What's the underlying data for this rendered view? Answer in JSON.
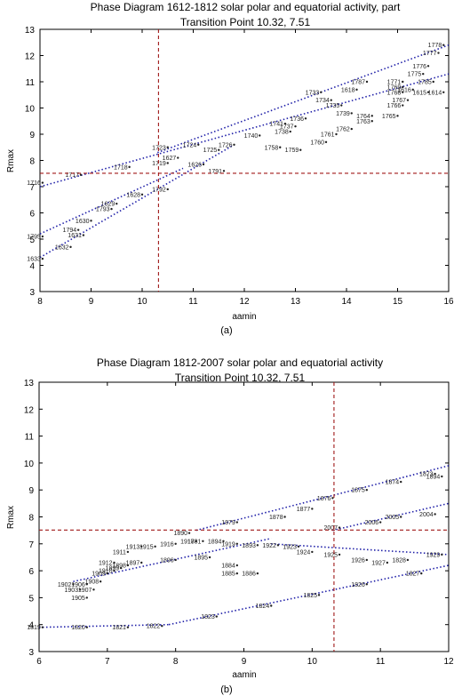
{
  "chart_data": [
    {
      "id": "a",
      "type": "scatter",
      "title": "Phase Diagram  1612-1812 solar polar and equatorial activity, part",
      "subtitle": "Transition Point 10.32, 7.51",
      "xlabel": "aamin",
      "ylabel": "Rmax",
      "panel_label": "(a)",
      "xlim": [
        8,
        16
      ],
      "ylim": [
        3,
        13
      ],
      "xticks": [
        8,
        9,
        10,
        11,
        12,
        13,
        14,
        15,
        16
      ],
      "yticks": [
        3,
        4,
        5,
        6,
        7,
        8,
        9,
        10,
        11,
        12,
        13
      ],
      "transition_point": {
        "x": 10.32,
        "y": 7.51
      },
      "trend_lines": [
        {
          "x1": 8.0,
          "y1": 4.3,
          "x2": 11.8,
          "y2": 8.6
        },
        {
          "x1": 8.0,
          "y1": 7.0,
          "x2": 16.0,
          "y2": 11.3
        },
        {
          "x1": 10.3,
          "y1": 8.3,
          "x2": 16.0,
          "y2": 12.4
        },
        {
          "x1": 8.0,
          "y1": 5.2,
          "x2": 10.8,
          "y2": 7.7
        }
      ],
      "points": [
        {
          "x": 8.05,
          "y": 7.15,
          "label": "1716"
        },
        {
          "x": 8.8,
          "y": 7.45,
          "label": "1717"
        },
        {
          "x": 9.75,
          "y": 7.75,
          "label": "1718"
        },
        {
          "x": 10.5,
          "y": 7.9,
          "label": "1719"
        },
        {
          "x": 11.5,
          "y": 8.4,
          "label": "1725"
        },
        {
          "x": 10.7,
          "y": 8.1,
          "label": "1627"
        },
        {
          "x": 11.2,
          "y": 7.85,
          "label": "1626"
        },
        {
          "x": 11.6,
          "y": 7.6,
          "label": "1791"
        },
        {
          "x": 10.0,
          "y": 6.7,
          "label": "1628"
        },
        {
          "x": 10.5,
          "y": 6.9,
          "label": "1792"
        },
        {
          "x": 9.5,
          "y": 6.35,
          "label": "1629"
        },
        {
          "x": 9.4,
          "y": 6.15,
          "label": "1793"
        },
        {
          "x": 9.0,
          "y": 5.7,
          "label": "1630"
        },
        {
          "x": 8.75,
          "y": 5.35,
          "label": "1794"
        },
        {
          "x": 8.85,
          "y": 5.15,
          "label": "1631"
        },
        {
          "x": 8.05,
          "y": 5.1,
          "label": "1795"
        },
        {
          "x": 8.6,
          "y": 4.7,
          "label": "1632"
        },
        {
          "x": 8.05,
          "y": 4.25,
          "label": "1633"
        },
        {
          "x": 10.5,
          "y": 8.5,
          "label": "1723"
        },
        {
          "x": 11.1,
          "y": 8.6,
          "label": "1724"
        },
        {
          "x": 11.8,
          "y": 8.6,
          "label": "1726"
        },
        {
          "x": 12.7,
          "y": 8.5,
          "label": "1758"
        },
        {
          "x": 13.1,
          "y": 8.4,
          "label": "1759"
        },
        {
          "x": 13.6,
          "y": 8.7,
          "label": "1760"
        },
        {
          "x": 13.8,
          "y": 9.0,
          "label": "1761"
        },
        {
          "x": 14.1,
          "y": 9.2,
          "label": "1762"
        },
        {
          "x": 14.5,
          "y": 9.5,
          "label": "1763"
        },
        {
          "x": 14.5,
          "y": 9.7,
          "label": "1764"
        },
        {
          "x": 15.0,
          "y": 9.7,
          "label": "1765"
        },
        {
          "x": 15.1,
          "y": 10.1,
          "label": "1766"
        },
        {
          "x": 15.2,
          "y": 10.3,
          "label": "1767"
        },
        {
          "x": 15.1,
          "y": 10.6,
          "label": "1768"
        },
        {
          "x": 15.1,
          "y": 10.8,
          "label": "1769"
        },
        {
          "x": 14.4,
          "y": 11.0,
          "label": "1787"
        },
        {
          "x": 14.2,
          "y": 10.7,
          "label": "1618"
        },
        {
          "x": 15.1,
          "y": 11.0,
          "label": "1771"
        },
        {
          "x": 15.5,
          "y": 11.3,
          "label": "1775"
        },
        {
          "x": 15.6,
          "y": 11.6,
          "label": "1776"
        },
        {
          "x": 15.8,
          "y": 12.1,
          "label": "1777"
        },
        {
          "x": 15.9,
          "y": 12.4,
          "label": "1778"
        },
        {
          "x": 15.9,
          "y": 10.6,
          "label": "1614"
        },
        {
          "x": 15.6,
          "y": 10.6,
          "label": "1615"
        },
        {
          "x": 15.3,
          "y": 10.7,
          "label": "1616"
        },
        {
          "x": 15.7,
          "y": 11.0,
          "label": "1785"
        },
        {
          "x": 13.5,
          "y": 10.6,
          "label": "1733"
        },
        {
          "x": 13.7,
          "y": 10.3,
          "label": "1734"
        },
        {
          "x": 13.9,
          "y": 10.1,
          "label": "1735"
        },
        {
          "x": 13.2,
          "y": 9.6,
          "label": "1736"
        },
        {
          "x": 13.0,
          "y": 9.3,
          "label": "1737"
        },
        {
          "x": 12.9,
          "y": 9.1,
          "label": "1738"
        },
        {
          "x": 14.1,
          "y": 9.8,
          "label": "1739"
        },
        {
          "x": 12.3,
          "y": 8.95,
          "label": "1740"
        },
        {
          "x": 12.8,
          "y": 9.4,
          "label": "1741"
        }
      ]
    },
    {
      "id": "b",
      "type": "scatter",
      "title": "Phase Diagram  1812-2007 solar polar and equatorial activity",
      "subtitle": "Transition Point 10.32, 7.51",
      "xlabel": "aamin",
      "ylabel": "Rmax",
      "panel_label": "(b)",
      "xlim": [
        6,
        12
      ],
      "ylim": [
        3,
        13
      ],
      "xticks": [
        6,
        7,
        8,
        9,
        10,
        11,
        12
      ],
      "yticks": [
        3,
        4,
        5,
        6,
        7,
        8,
        9,
        10,
        11,
        12,
        13
      ],
      "transition_point": {
        "x": 10.32,
        "y": 7.51
      },
      "trend_lines": [
        {
          "x1": 6.0,
          "y1": 3.9,
          "x2": 7.9,
          "y2": 4.0
        },
        {
          "x1": 7.9,
          "y1": 4.0,
          "x2": 12.0,
          "y2": 6.2
        },
        {
          "x1": 8.3,
          "y1": 7.5,
          "x2": 12.0,
          "y2": 9.9
        },
        {
          "x1": 10.3,
          "y1": 7.5,
          "x2": 12.0,
          "y2": 8.5
        },
        {
          "x1": 9.4,
          "y1": 7.0,
          "x2": 12.0,
          "y2": 6.6
        },
        {
          "x1": 6.5,
          "y1": 5.6,
          "x2": 9.4,
          "y2": 7.2
        }
      ],
      "points": [
        {
          "x": 6.05,
          "y": 3.9,
          "label": "1819"
        },
        {
          "x": 6.7,
          "y": 3.9,
          "label": "1820"
        },
        {
          "x": 7.3,
          "y": 3.9,
          "label": "1821"
        },
        {
          "x": 7.8,
          "y": 3.95,
          "label": "1822"
        },
        {
          "x": 8.6,
          "y": 4.3,
          "label": "1823"
        },
        {
          "x": 9.4,
          "y": 4.7,
          "label": "1824"
        },
        {
          "x": 10.1,
          "y": 5.1,
          "label": "1825"
        },
        {
          "x": 10.8,
          "y": 5.5,
          "label": "1826"
        },
        {
          "x": 11.6,
          "y": 5.9,
          "label": "1827"
        },
        {
          "x": 11.4,
          "y": 6.4,
          "label": "1828"
        },
        {
          "x": 11.9,
          "y": 6.6,
          "label": "1929"
        },
        {
          "x": 10.8,
          "y": 6.4,
          "label": "1926"
        },
        {
          "x": 11.1,
          "y": 6.3,
          "label": "1927"
        },
        {
          "x": 10.4,
          "y": 6.6,
          "label": "1925"
        },
        {
          "x": 10.0,
          "y": 6.7,
          "label": "1924"
        },
        {
          "x": 9.8,
          "y": 6.9,
          "label": "1923"
        },
        {
          "x": 9.5,
          "y": 6.95,
          "label": "1922"
        },
        {
          "x": 9.2,
          "y": 6.95,
          "label": "1893"
        },
        {
          "x": 8.9,
          "y": 7.0,
          "label": "1919"
        },
        {
          "x": 8.7,
          "y": 7.1,
          "label": "1894"
        },
        {
          "x": 8.3,
          "y": 7.1,
          "label": "1917"
        },
        {
          "x": 8.0,
          "y": 7.0,
          "label": "1916"
        },
        {
          "x": 7.7,
          "y": 6.9,
          "label": "1915"
        },
        {
          "x": 7.5,
          "y": 6.9,
          "label": "1913"
        },
        {
          "x": 7.3,
          "y": 6.7,
          "label": "1911"
        },
        {
          "x": 7.1,
          "y": 6.3,
          "label": "1912"
        },
        {
          "x": 7.5,
          "y": 6.3,
          "label": "1897"
        },
        {
          "x": 8.0,
          "y": 6.4,
          "label": "1896"
        },
        {
          "x": 8.5,
          "y": 6.5,
          "label": "1895"
        },
        {
          "x": 8.9,
          "y": 6.2,
          "label": "1884"
        },
        {
          "x": 8.9,
          "y": 5.9,
          "label": "1885"
        },
        {
          "x": 9.2,
          "y": 5.9,
          "label": "1886"
        },
        {
          "x": 8.2,
          "y": 7.4,
          "label": "1890"
        },
        {
          "x": 8.4,
          "y": 7.1,
          "label": "1881"
        },
        {
          "x": 8.9,
          "y": 7.8,
          "label": "1879"
        },
        {
          "x": 9.6,
          "y": 8.0,
          "label": "1878"
        },
        {
          "x": 10.0,
          "y": 8.3,
          "label": "1877"
        },
        {
          "x": 10.3,
          "y": 8.7,
          "label": "1876"
        },
        {
          "x": 10.8,
          "y": 9.0,
          "label": "1875"
        },
        {
          "x": 11.3,
          "y": 9.3,
          "label": "1874"
        },
        {
          "x": 11.8,
          "y": 9.6,
          "label": "1873"
        },
        {
          "x": 11.9,
          "y": 9.5,
          "label": "1894"
        },
        {
          "x": 10.4,
          "y": 7.6,
          "label": "2007"
        },
        {
          "x": 11.0,
          "y": 7.8,
          "label": "2006"
        },
        {
          "x": 11.3,
          "y": 8.0,
          "label": "2005"
        },
        {
          "x": 11.8,
          "y": 8.1,
          "label": "2004"
        },
        {
          "x": 6.5,
          "y": 5.5,
          "label": "1902"
        },
        {
          "x": 6.6,
          "y": 5.3,
          "label": "1903"
        },
        {
          "x": 6.7,
          "y": 5.0,
          "label": "1905"
        },
        {
          "x": 6.8,
          "y": 5.3,
          "label": "1907"
        },
        {
          "x": 6.9,
          "y": 5.6,
          "label": "1908"
        },
        {
          "x": 7.0,
          "y": 5.9,
          "label": "1909"
        },
        {
          "x": 6.7,
          "y": 5.5,
          "label": "1906"
        },
        {
          "x": 7.1,
          "y": 6.0,
          "label": "1910"
        },
        {
          "x": 7.2,
          "y": 6.1,
          "label": "1899"
        },
        {
          "x": 7.3,
          "y": 6.2,
          "label": "1898"
        }
      ]
    }
  ]
}
